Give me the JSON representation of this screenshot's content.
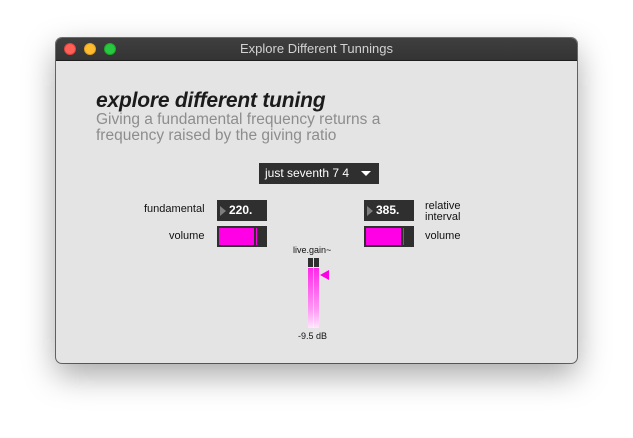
{
  "window": {
    "title": "Explore Different Tunnings"
  },
  "patch": {
    "heading": "explore different tuning",
    "description": "Giving a fundamental frequency returns a frequency raised by the giving ratio"
  },
  "tuning_menu": {
    "selected": "just seventh 7 4"
  },
  "fundamental": {
    "label": "fundamental",
    "value": "220.",
    "volume_label": "volume",
    "volume_level": 0.83
  },
  "interval": {
    "label_line1": "relative",
    "label_line2": "interval",
    "value": "385.",
    "volume_label": "volume",
    "volume_level": 0.83
  },
  "gain": {
    "label": "live.gain~",
    "readout": "-9.5 dB",
    "level": 0.84
  },
  "colors": {
    "accent": "#ff00e6",
    "control_bg": "#2f2f2f",
    "patch_bg": "#e4e4e4"
  },
  "icons": {
    "menu_arrow": "chevron-down-icon",
    "number_triangle": "triangle-right-icon",
    "gain_pointer": "triangle-left-icon"
  }
}
